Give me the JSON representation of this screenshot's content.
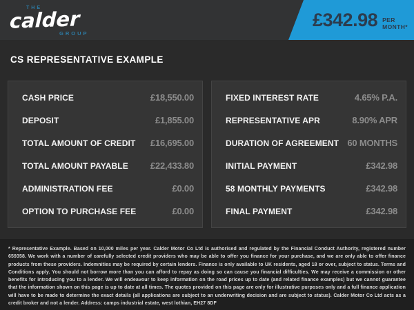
{
  "brand": {
    "the": "THE",
    "name": "calder",
    "group": "GROUP"
  },
  "banner": {
    "price": "£342.98",
    "per_month": "PER MONTH*",
    "background_color": "#1f9ad7",
    "text_color": "#2c3c4e"
  },
  "heading": "CS REPRESENTATIVE EXAMPLE",
  "tables": {
    "left": {
      "rows": [
        {
          "label": "CASH PRICE",
          "value": "£18,550.00"
        },
        {
          "label": "DEPOSIT",
          "value": "£1,855.00"
        },
        {
          "label": "TOTAL AMOUNT OF CREDIT",
          "value": "£16,695.00"
        },
        {
          "label": "TOTAL AMOUNT PAYABLE",
          "value": "£22,433.80"
        },
        {
          "label": "ADMINISTRATION FEE",
          "value": "£0.00"
        },
        {
          "label": "OPTION TO PURCHASE FEE",
          "value": "£0.00"
        }
      ]
    },
    "right": {
      "rows": [
        {
          "label": "FIXED INTEREST RATE",
          "value": "4.65% P.A."
        },
        {
          "label": "REPRESENTATIVE APR",
          "value": "8.90% APR"
        },
        {
          "label": "DURATION OF AGREEMENT",
          "value": "60 MONTHS"
        },
        {
          "label": "INITIAL PAYMENT",
          "value": "£342.98"
        },
        {
          "label": "58 MONTHLY PAYMENTS",
          "value": "£342.98"
        },
        {
          "label": "FINAL PAYMENT",
          "value": "£342.98"
        }
      ]
    }
  },
  "disclaimer": "* Representative Example. Based on 10,000 miles per year. Calder Motor Co Ltd is authorised and regulated by the Financial Conduct Authority, registered number 659358. We work with a number of carefully selected credit providers who may be able to offer you finance for your purchase, and we are only able to offer finance products from these providers. Indemnities may be required by certain lenders. Finance is only available to UK residents, aged 18 or over, subject to status. Terms and Conditions apply. You should not borrow more than you can afford to repay as doing so can cause you financial difficulties. We may receive a commission or other benefits for introducing you to a lender. We will endeavour to keep information on the road prices up to date (and related finance examples) but we cannot guarantee that the information shown on this page is up to date at all times. The quotes provided on this page are only for illustrative purposes only and a full finance application will have to be made to determine the exact details (all applications are subject to an underwriting decision and are subject to status). Calder Motor Co Ltd acts as a credit broker and not a lender. Address: camps industrial estate, west lothian, EH27 8DF",
  "colors": {
    "header_bg": "#323334",
    "body_bg": "#2a2a2a",
    "card_bg": "#353535",
    "footer_bg": "#1f1f1f",
    "accent_blue": "#1f9ad7",
    "logo_blue": "#2d7ca6",
    "label_white": "#f2f2f2",
    "value_gray": "#8c8c8c"
  }
}
